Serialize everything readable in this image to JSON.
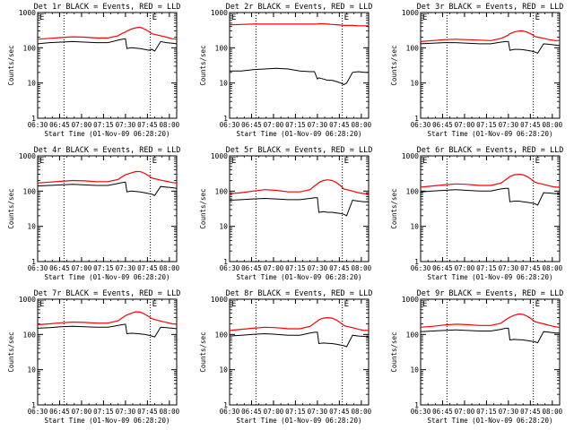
{
  "chart_data": {
    "type": "line",
    "scale": "log",
    "ylim": [
      1,
      1000
    ],
    "y_ticks": [
      "1",
      "10",
      "100",
      "1000"
    ],
    "x_ticks": [
      "06:30",
      "06:45",
      "07:00",
      "07:15",
      "07:30",
      "07:45",
      "08:00"
    ],
    "x_tick_minutes": [
      0,
      15,
      30,
      45,
      60,
      75,
      90
    ],
    "x_range_minutes": [
      0,
      95
    ],
    "ylabel": "Counts/sec",
    "xlabel": "Start Time (01-Nov-09 06:28:20)",
    "corner_marker": "E",
    "colors": {
      "events": "#000000",
      "lld": "#ff0000"
    },
    "vertical_markers_minutes": [
      18,
      77
    ],
    "x_samples_minutes": [
      0,
      8,
      16,
      24,
      32,
      40,
      48,
      55,
      58,
      60,
      61,
      64,
      67,
      70,
      73,
      76,
      78,
      80,
      84,
      88,
      92,
      95
    ],
    "panels": [
      {
        "title": "Det 1r BLACK = Events, RED = LLD",
        "events": [
          130,
          140,
          145,
          150,
          145,
          140,
          140,
          165,
          175,
          180,
          95,
          100,
          98,
          95,
          90,
          85,
          90,
          80,
          150,
          140,
          135,
          130
        ],
        "lld": [
          175,
          185,
          195,
          205,
          200,
          190,
          190,
          220,
          260,
          280,
          300,
          340,
          370,
          380,
          340,
          290,
          250,
          240,
          220,
          200,
          180,
          175
        ]
      },
      {
        "title": "Det 2r BLACK = Events, RED = LLD",
        "events": [
          22,
          22,
          24,
          25,
          26,
          25,
          22,
          21,
          21,
          13,
          14,
          13,
          12,
          12,
          11,
          10,
          9,
          10,
          20,
          21,
          20,
          20
        ],
        "lld": [
          450,
          460,
          470,
          470,
          470,
          470,
          470,
          470,
          470,
          475,
          480,
          480,
          470,
          460,
          450,
          440,
          430,
          430,
          430,
          420,
          420,
          420
        ]
      },
      {
        "title": "Det 3r BLACK = Events, RED = LLD",
        "events": [
          130,
          135,
          140,
          140,
          135,
          130,
          130,
          145,
          150,
          150,
          85,
          90,
          90,
          88,
          84,
          80,
          76,
          70,
          130,
          125,
          120,
          115
        ],
        "lld": [
          150,
          160,
          170,
          175,
          170,
          165,
          160,
          185,
          210,
          230,
          250,
          280,
          300,
          300,
          275,
          240,
          210,
          200,
          185,
          170,
          160,
          160
        ]
      },
      {
        "title": "Det 4r BLACK = Events, RED = LLD",
        "events": [
          140,
          145,
          150,
          155,
          150,
          145,
          145,
          165,
          175,
          180,
          95,
          100,
          98,
          95,
          90,
          85,
          82,
          75,
          135,
          130,
          125,
          120
        ],
        "lld": [
          170,
          180,
          190,
          200,
          195,
          185,
          185,
          215,
          260,
          290,
          300,
          330,
          360,
          360,
          320,
          270,
          235,
          225,
          205,
          190,
          175,
          170
        ]
      },
      {
        "title": "Det 5r BLACK = Events, RED = LLD",
        "events": [
          55,
          57,
          60,
          62,
          60,
          57,
          57,
          62,
          65,
          65,
          25,
          26,
          25,
          25,
          24,
          23,
          22,
          20,
          55,
          52,
          50,
          50
        ],
        "lld": [
          85,
          90,
          100,
          110,
          105,
          95,
          95,
          110,
          140,
          160,
          175,
          200,
          210,
          200,
          175,
          140,
          115,
          110,
          100,
          90,
          85,
          85
        ]
      },
      {
        "title": "Det 6r BLACK = Events, RED = LLD",
        "events": [
          95,
          100,
          105,
          110,
          105,
          100,
          100,
          115,
          120,
          120,
          50,
          52,
          52,
          50,
          48,
          46,
          44,
          40,
          90,
          88,
          85,
          85
        ],
        "lld": [
          130,
          140,
          150,
          160,
          155,
          145,
          145,
          170,
          210,
          240,
          260,
          290,
          300,
          290,
          255,
          210,
          180,
          170,
          155,
          140,
          130,
          130
        ]
      },
      {
        "title": "Det 7r BLACK = Events, RED = LLD",
        "events": [
          150,
          155,
          165,
          170,
          165,
          160,
          160,
          180,
          190,
          195,
          105,
          108,
          106,
          104,
          100,
          95,
          90,
          85,
          160,
          155,
          150,
          145
        ],
        "lld": [
          190,
          200,
          215,
          225,
          220,
          210,
          210,
          245,
          300,
          340,
          360,
          400,
          440,
          430,
          380,
          320,
          280,
          265,
          240,
          220,
          200,
          195
        ]
      },
      {
        "title": "Det 8r BLACK = Events, RED = LLD",
        "events": [
          90,
          95,
          100,
          105,
          100,
          95,
          95,
          110,
          115,
          115,
          55,
          57,
          56,
          55,
          53,
          50,
          48,
          45,
          95,
          90,
          88,
          85
        ],
        "lld": [
          130,
          140,
          150,
          160,
          155,
          145,
          145,
          170,
          210,
          240,
          260,
          290,
          300,
          290,
          255,
          210,
          180,
          170,
          155,
          140,
          130,
          130
        ]
      },
      {
        "title": "Det 9r BLACK = Events, RED = LLD",
        "events": [
          120,
          125,
          130,
          135,
          130,
          125,
          125,
          140,
          150,
          150,
          70,
          72,
          71,
          70,
          67,
          64,
          62,
          58,
          120,
          115,
          110,
          110
        ],
        "lld": [
          160,
          170,
          185,
          195,
          190,
          180,
          180,
          210,
          260,
          290,
          310,
          350,
          380,
          370,
          325,
          270,
          230,
          220,
          200,
          180,
          165,
          160
        ]
      }
    ]
  }
}
